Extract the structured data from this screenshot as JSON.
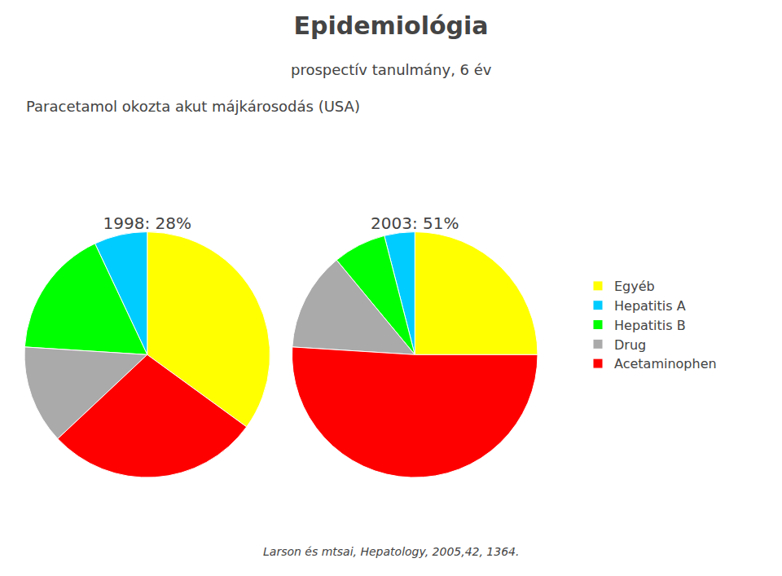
{
  "title": "Epidemiológia",
  "subtitle": "prospectív tanulmány, 6 év",
  "annotations": [
    "Paracetamol okozta akut májkárosodás (USA)",
    "Larson és mtsai, Hepatology, 2005,42, 1364."
  ],
  "chart_data": [
    {
      "type": "pie",
      "title": "1998: 28%",
      "categories": [
        "Egyéb",
        "Hepatitis A",
        "Hepatitis B",
        "Drug",
        "Acetaminophen"
      ],
      "values": [
        35,
        7,
        17,
        13,
        28
      ],
      "colors": [
        "#ffff00",
        "#00ccff",
        "#00ff00",
        "#aaaaaa",
        "#ff0000"
      ],
      "legend": "right"
    },
    {
      "type": "pie",
      "title": "2003: 51%",
      "categories": [
        "Egyéb",
        "Hepatitis A",
        "Hepatitis B",
        "Drug",
        "Acetaminophen"
      ],
      "values": [
        25,
        4,
        7,
        13,
        51
      ],
      "colors": [
        "#ffff00",
        "#00ccff",
        "#00ff00",
        "#aaaaaa",
        "#ff0000"
      ],
      "legend": "right"
    }
  ]
}
